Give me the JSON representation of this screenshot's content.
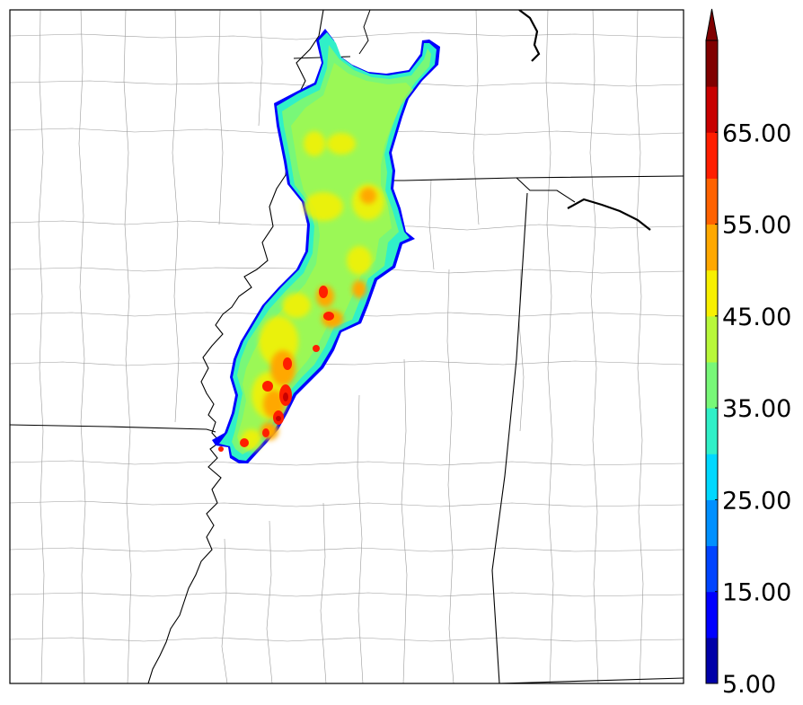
{
  "colorbar": {
    "min": 5.0,
    "max": 70.0,
    "step": 5.0,
    "extend": "max",
    "tick_labels": [
      "5.00",
      "15.00",
      "25.00",
      "35.00",
      "45.00",
      "55.00",
      "65.00"
    ],
    "level_colors": [
      "#0000a8",
      "#0000ff",
      "#0044ff",
      "#0090ff",
      "#00d8ff",
      "#30f0c8",
      "#78f878",
      "#b8f83a",
      "#f8f000",
      "#ffa800",
      "#ff6200",
      "#ff1e00",
      "#c80000",
      "#800000"
    ]
  },
  "map": {
    "background": "#ffffff",
    "state_border_color": "#000000",
    "county_border_color": "#9a9a9a"
  }
}
